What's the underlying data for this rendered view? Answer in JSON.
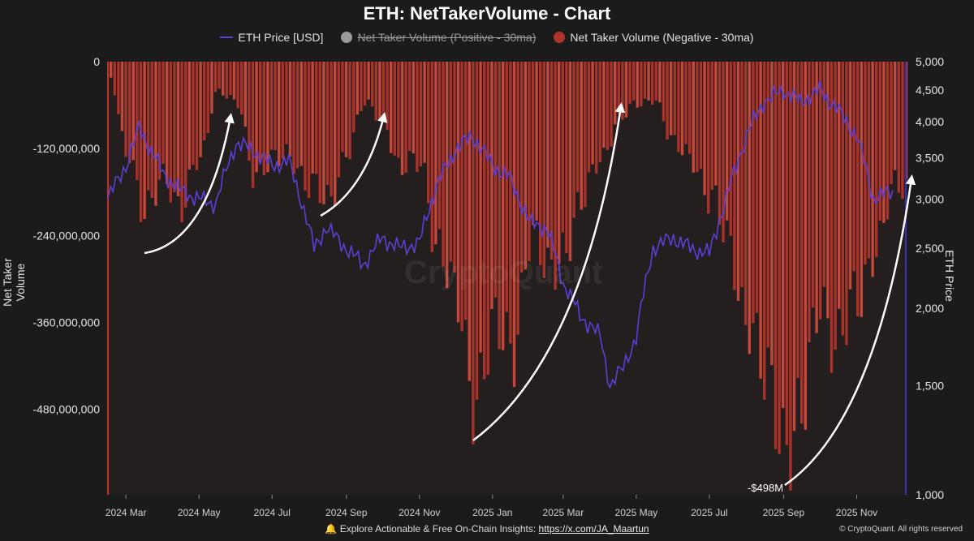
{
  "chart_data": {
    "type": "bar",
    "title": "ETH: NetTakerVolume - Chart",
    "left_axis": {
      "label": "Net Taker Volume",
      "ticks": [
        "0",
        "-120,000,000",
        "-240,000,000",
        "-360,000,000",
        "-480,000,000"
      ],
      "range": [
        -598000000,
        0
      ]
    },
    "right_axis": {
      "label": "ETH Price",
      "scale": "log",
      "ticks": [
        "5,000",
        "4,500",
        "4,000",
        "3,500",
        "3,000",
        "2,500",
        "2,000",
        "1,500",
        "1,000"
      ],
      "range": [
        1000,
        5000
      ]
    },
    "x_ticks": [
      "2024 Mar",
      "2024 May",
      "2024 Jul",
      "2024 Sep",
      "2024 Nov",
      "2025 Jan",
      "2025 Mar",
      "2025 May",
      "2025 Jul",
      "2025 Sep",
      "2025 Nov"
    ],
    "legend": [
      {
        "label": "ETH Price [USD]",
        "color": "#5b3fd6",
        "type": "line",
        "hidden": false
      },
      {
        "label": "Net Taker Volume (Positive - 30ma)",
        "color": "#9a9a9a",
        "type": "dot",
        "hidden": true
      },
      {
        "label": "Net Taker Volume (Negative - 30ma)",
        "color": "#b0332a",
        "type": "dot",
        "hidden": false
      }
    ],
    "series": [
      {
        "name": "Net Taker Volume (Negative - 30ma)",
        "type": "bar",
        "color": "#b0332a",
        "x": [
          "2024-02-15",
          "2024-03-01",
          "2024-03-15",
          "2024-04-01",
          "2024-04-15",
          "2024-05-01",
          "2024-05-15",
          "2024-06-01",
          "2024-06-15",
          "2024-07-01",
          "2024-07-15",
          "2024-08-01",
          "2024-08-15",
          "2024-09-01",
          "2024-09-15",
          "2024-10-01",
          "2024-10-15",
          "2024-11-01",
          "2024-11-15",
          "2024-12-01",
          "2024-12-15",
          "2025-01-01",
          "2025-01-15",
          "2025-02-01",
          "2025-02-15",
          "2025-03-01",
          "2025-03-15",
          "2025-04-01",
          "2025-04-15",
          "2025-05-01",
          "2025-05-15",
          "2025-06-01",
          "2025-06-15",
          "2025-07-01",
          "2025-07-15",
          "2025-08-01",
          "2025-08-15",
          "2025-09-01",
          "2025-09-15",
          "2025-10-01",
          "2025-10-15",
          "2025-11-01",
          "2025-11-15",
          "2025-12-01"
        ],
        "values": [
          -20000000,
          -120000000,
          -220000000,
          -150000000,
          -210000000,
          -130000000,
          -40000000,
          -60000000,
          -150000000,
          -140000000,
          -130000000,
          -170000000,
          -200000000,
          -120000000,
          -60000000,
          -80000000,
          -150000000,
          -140000000,
          -250000000,
          -340000000,
          -450000000,
          -380000000,
          -400000000,
          -240000000,
          -300000000,
          -250000000,
          -200000000,
          -130000000,
          -80000000,
          -60000000,
          -50000000,
          -120000000,
          -130000000,
          -190000000,
          -250000000,
          -350000000,
          -450000000,
          -510000000,
          -498000000,
          -330000000,
          -380000000,
          -340000000,
          -250000000,
          -180000000
        ]
      },
      {
        "name": "ETH Price [USD]",
        "type": "line",
        "color": "#5b3fd6",
        "x": [
          "2024-02-15",
          "2024-03-01",
          "2024-03-12",
          "2024-04-01",
          "2024-04-15",
          "2024-05-01",
          "2024-05-15",
          "2024-06-01",
          "2024-06-15",
          "2024-07-01",
          "2024-07-15",
          "2024-08-05",
          "2024-08-15",
          "2024-09-01",
          "2024-09-15",
          "2024-10-01",
          "2024-10-15",
          "2024-11-01",
          "2024-11-15",
          "2024-12-01",
          "2024-12-15",
          "2025-01-01",
          "2025-01-15",
          "2025-02-01",
          "2025-02-15",
          "2025-03-01",
          "2025-03-15",
          "2025-04-01",
          "2025-04-09",
          "2025-04-20",
          "2025-05-01",
          "2025-05-15",
          "2025-06-01",
          "2025-06-15",
          "2025-07-01",
          "2025-07-15",
          "2025-08-01",
          "2025-08-15",
          "2025-09-01",
          "2025-09-15",
          "2025-10-01",
          "2025-10-15",
          "2025-11-01",
          "2025-11-15",
          "2025-12-01"
        ],
        "values": [
          3000,
          3400,
          3900,
          3300,
          3100,
          3000,
          2950,
          3700,
          3600,
          3400,
          3450,
          2500,
          2700,
          2500,
          2350,
          2600,
          2500,
          2550,
          3150,
          3600,
          3800,
          3400,
          3250,
          2750,
          2700,
          2200,
          1950,
          1800,
          1500,
          1600,
          1800,
          2500,
          2600,
          2500,
          2450,
          3000,
          3800,
          4300,
          4500,
          4300,
          4500,
          4200,
          3800,
          3000,
          3100
        ]
      }
    ],
    "annotations": [
      {
        "text": "-$498M"
      }
    ]
  },
  "watermark": "CryptoQuant",
  "footer": {
    "icon": "bell-icon",
    "text": "Explore Actionable & Free On-Chain Insights:",
    "link": "https://x.com/JA_Maartun"
  },
  "credit": "© CryptoQuant. All rights reserved"
}
